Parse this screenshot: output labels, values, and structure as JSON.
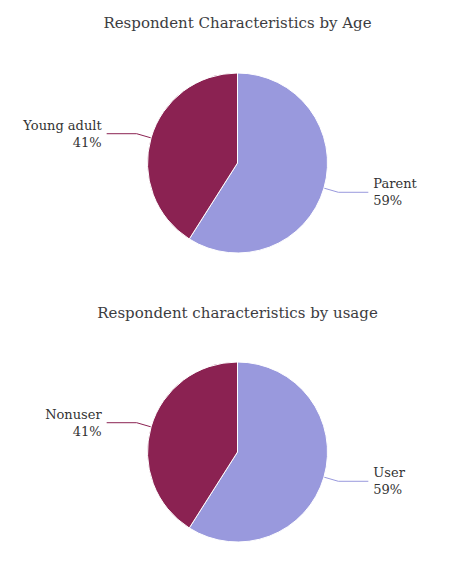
{
  "chart_data": [
    {
      "type": "pie",
      "title": "Respondent Characteristics by Age",
      "categories": [
        "Parent",
        "Young adult"
      ],
      "values": [
        59,
        41
      ],
      "value_labels": [
        "59%",
        "41%"
      ],
      "data_labels": true,
      "colors": [
        "#9999dd",
        "#8b2252"
      ]
    },
    {
      "type": "pie",
      "title": "Respondent characteristics by usage",
      "categories": [
        "User",
        "Nonuser"
      ],
      "values": [
        59,
        41
      ],
      "value_labels": [
        "59%",
        "41%"
      ],
      "data_labels": true,
      "colors": [
        "#9999dd",
        "#8b2252"
      ]
    }
  ]
}
